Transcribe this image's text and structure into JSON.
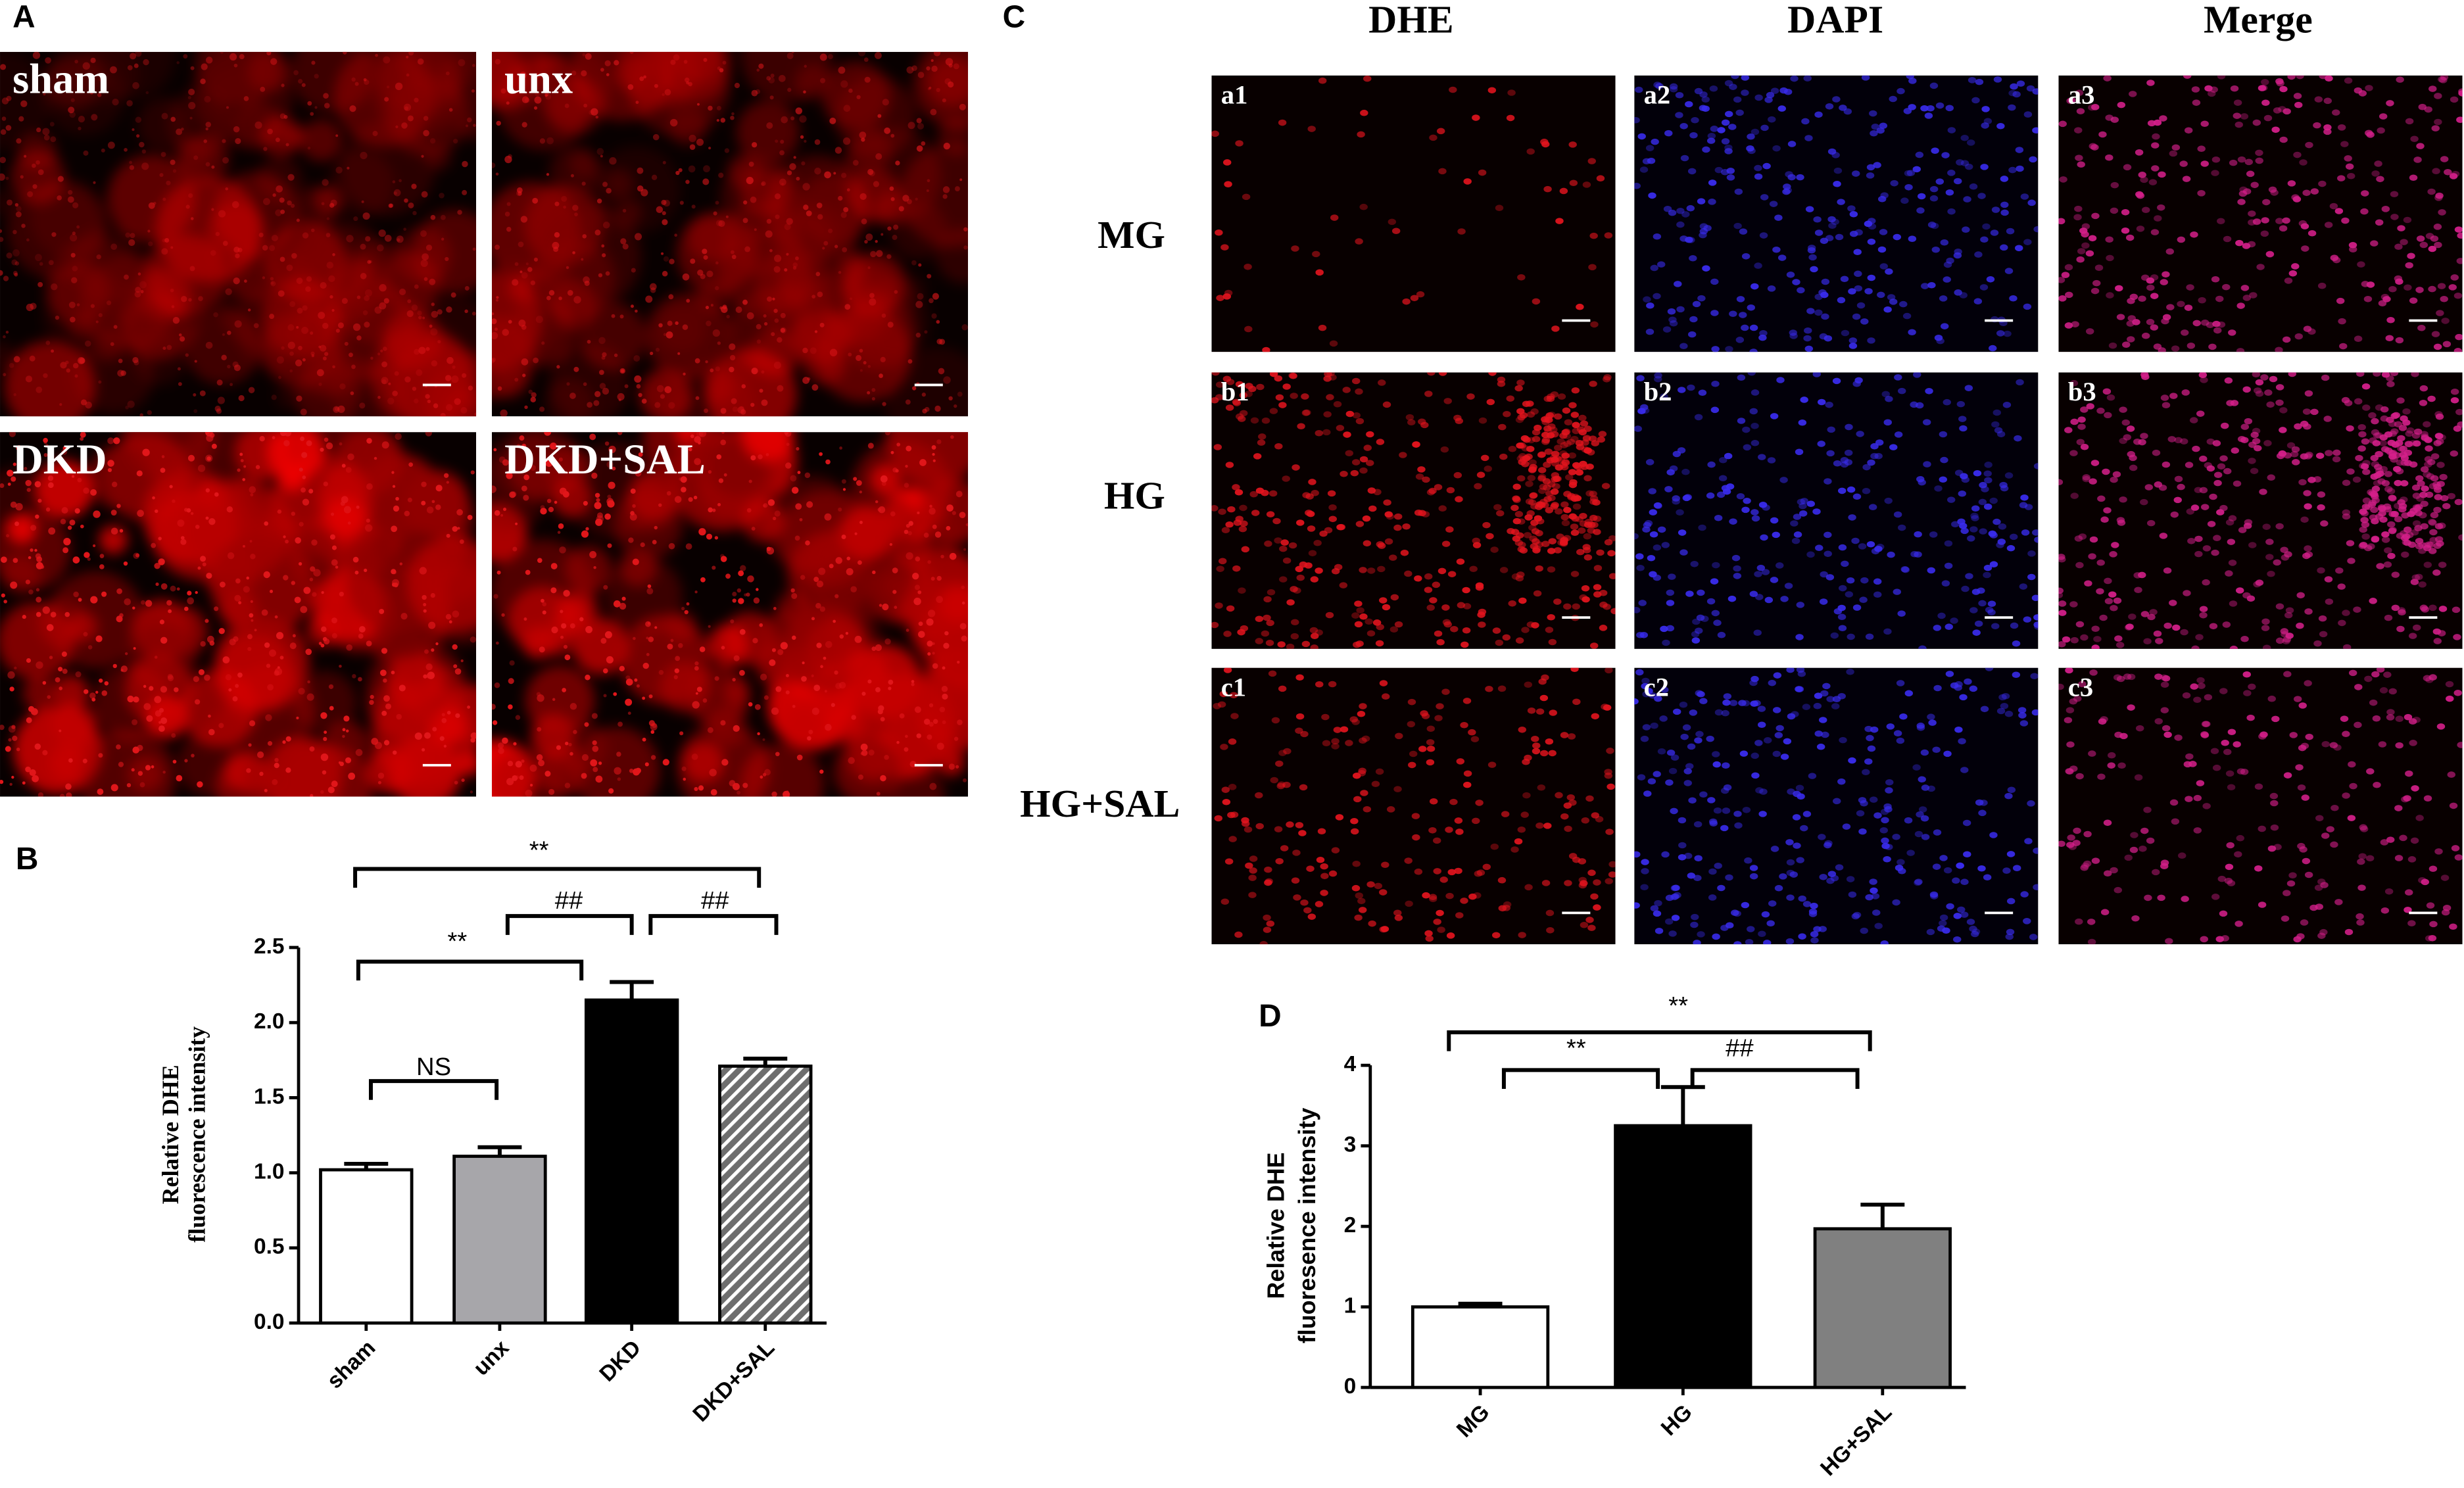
{
  "panel_a": {
    "label": "A",
    "images": [
      "sham",
      "unx",
      "DKD",
      "DKD+SAL"
    ]
  },
  "panel_c": {
    "label": "C",
    "columns": [
      "DHE",
      "DAPI",
      "Merge"
    ],
    "rows": [
      "MG",
      "HG",
      "HG+SAL"
    ],
    "image_labels": [
      [
        "a1",
        "a2",
        "a3"
      ],
      [
        "b1",
        "b2",
        "b3"
      ],
      [
        "c1",
        "c2",
        "c3"
      ]
    ]
  },
  "chart_data": [
    {
      "type": "bar",
      "label": "B",
      "categories": [
        "sham",
        "unx",
        "DKD",
        "DKD+SAL"
      ],
      "values": [
        1.02,
        1.11,
        2.15,
        1.71
      ],
      "errors": [
        0.04,
        0.06,
        0.12,
        0.05
      ],
      "colors": [
        "#ffffff",
        "#a7a6aa",
        "#000000",
        "#6e6e6e"
      ],
      "hatch": [
        false,
        false,
        false,
        true
      ],
      "ylabel": [
        "Relative DHE",
        "fluorescence intensity"
      ],
      "ylim": [
        0,
        2.5
      ],
      "yticks": [
        {
          "value": 0,
          "label": "0.0"
        },
        0.5,
        {
          "value": 1,
          "label": "1.0"
        },
        1.5,
        {
          "value": 2,
          "label": "2.0"
        },
        2.5
      ],
      "annotations": [
        "**",
        "##",
        "##",
        "**",
        "NS"
      ]
    },
    {
      "type": "bar",
      "label": "D",
      "categories": [
        "MG",
        "HG",
        "HG+SAL"
      ],
      "values": [
        1.0,
        3.25,
        1.97
      ],
      "errors": [
        0.04,
        0.48,
        0.3
      ],
      "colors": [
        "#ffffff",
        "#000000",
        "#808080"
      ],
      "hatch": [
        false,
        false,
        false
      ],
      "ylabel": [
        "Relative DHE",
        "fluoresence intensity"
      ],
      "ylim": [
        0,
        4
      ],
      "yticks": [
        0,
        1,
        2,
        3,
        4
      ],
      "annotations": [
        "**",
        "**",
        "##"
      ]
    }
  ]
}
